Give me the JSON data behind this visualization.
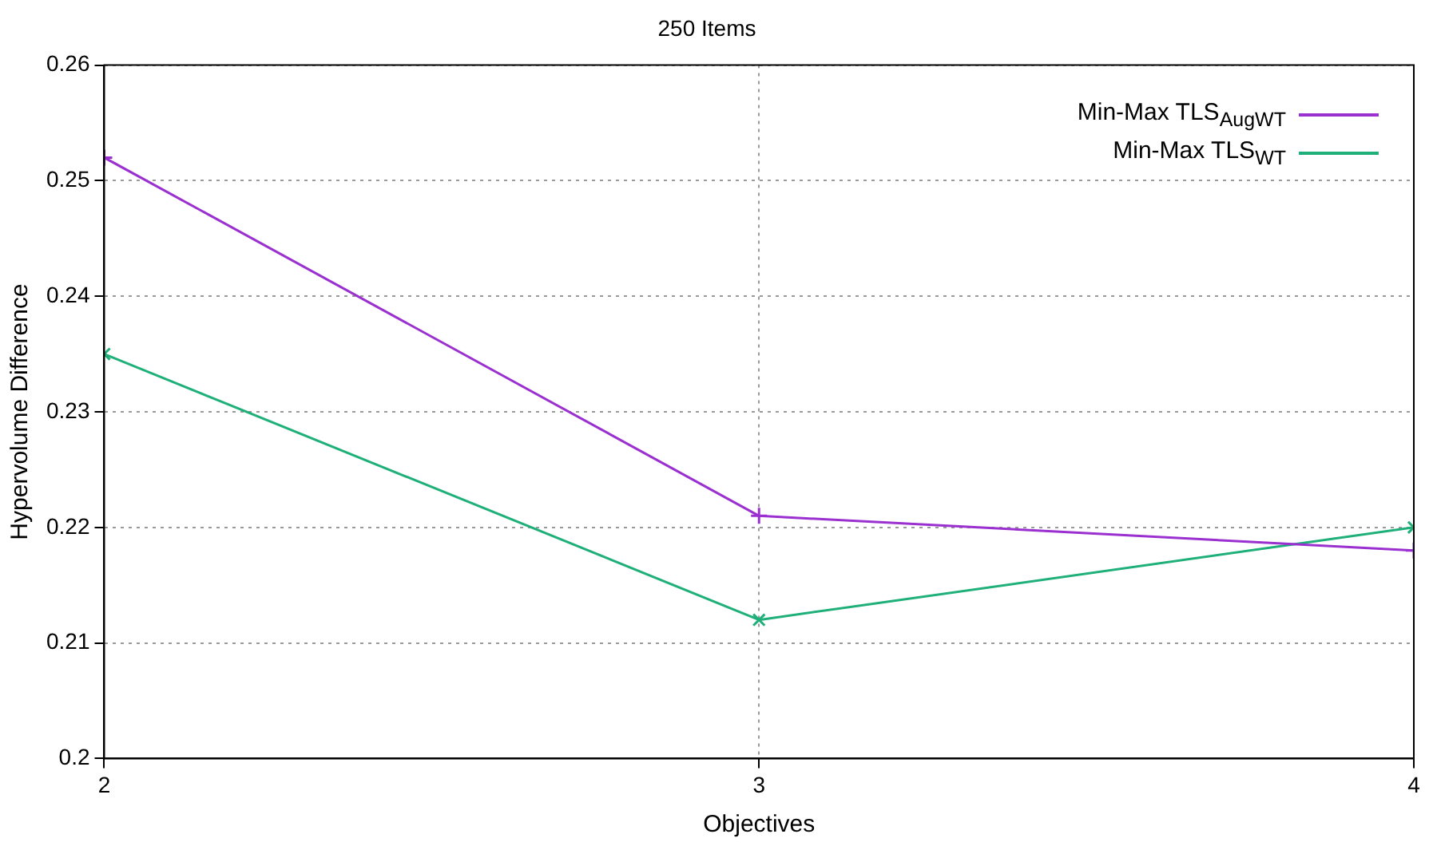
{
  "chart_data": {
    "type": "line",
    "title": "250 Items",
    "xlabel": "Objectives",
    "ylabel": "Hypervolume Difference",
    "x": [
      2,
      3,
      4
    ],
    "xlim": [
      2,
      4
    ],
    "xticks": [
      2,
      3,
      4
    ],
    "ylim": [
      0.2,
      0.26
    ],
    "yticks": [
      0.2,
      0.21,
      0.22,
      0.23,
      0.24,
      0.25,
      0.26
    ],
    "grid": true,
    "legend": "top right",
    "marker": "cross",
    "line_style": "solid",
    "series": [
      {
        "name": "Min-Max TLS$_{AugWT}$",
        "color": "#9b30d0",
        "values": [
          0.252,
          0.221,
          0.218
        ]
      },
      {
        "name": "Min-Max TLS$_{WT}$",
        "color": "#1fb07a",
        "values": [
          0.235,
          0.212,
          0.22
        ]
      }
    ]
  }
}
